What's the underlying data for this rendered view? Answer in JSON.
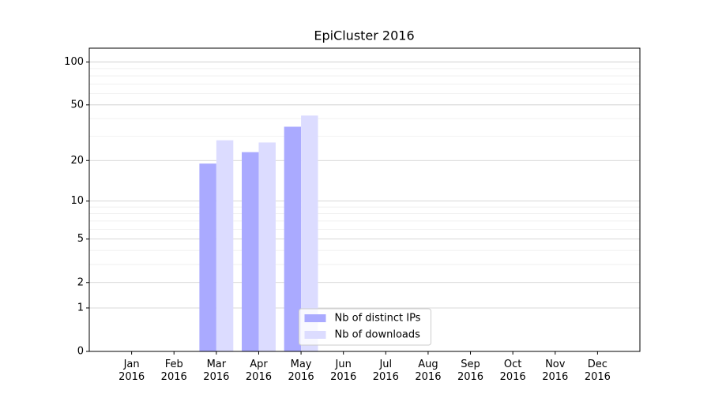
{
  "chart_data": {
    "type": "bar",
    "title": "EpiCluster 2016",
    "categories": [
      "Jan 2016",
      "Feb 2016",
      "Mar 2016",
      "Apr 2016",
      "May 2016",
      "Jun 2016",
      "Jul 2016",
      "Aug 2016",
      "Sep 2016",
      "Oct 2016",
      "Nov 2016",
      "Dec 2016"
    ],
    "series": [
      {
        "name": "Nb of distinct IPs",
        "color": "#aaaaff",
        "values": [
          null,
          null,
          19,
          23,
          35,
          null,
          null,
          null,
          null,
          null,
          null,
          null
        ]
      },
      {
        "name": "Nb of downloads",
        "color": "#dcdcff",
        "values": [
          null,
          null,
          28,
          27,
          42,
          null,
          null,
          null,
          null,
          null,
          null,
          null
        ]
      }
    ],
    "yscale": "log1p",
    "ylim": [
      0,
      125
    ],
    "yticks": [
      0,
      1,
      2,
      5,
      10,
      20,
      50,
      100
    ],
    "minor_yticks": [
      3,
      4,
      6,
      7,
      8,
      9,
      30,
      40,
      60,
      70,
      80,
      90
    ],
    "grid": true,
    "legend": "lower center"
  }
}
